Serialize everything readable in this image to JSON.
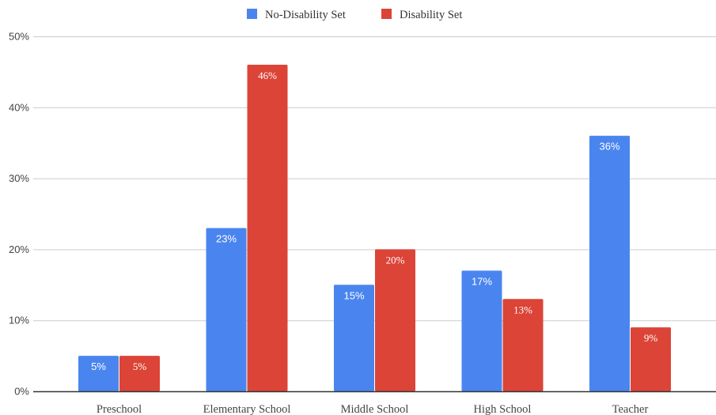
{
  "chart_data": {
    "type": "bar",
    "categories": [
      "Preschool",
      "Elementary School",
      "Middle School",
      "High School",
      "Teacher"
    ],
    "series": [
      {
        "name": "No-Disability Set",
        "values": [
          5,
          23,
          15,
          17,
          36
        ],
        "labels": [
          "5%",
          "23%",
          "15%",
          "17%",
          "36%"
        ],
        "color": "#4a85ef"
      },
      {
        "name": "Disability Set",
        "values": [
          5,
          46,
          20,
          13,
          9
        ],
        "labels": [
          "5%",
          "46%",
          "20%",
          "13%",
          "9%"
        ],
        "color": "#db4437"
      }
    ],
    "yticks": [
      "0%",
      "10%",
      "20%",
      "30%",
      "40%",
      "50%"
    ],
    "ylim": [
      0,
      50
    ],
    "grid": true,
    "legend": "top-center"
  }
}
